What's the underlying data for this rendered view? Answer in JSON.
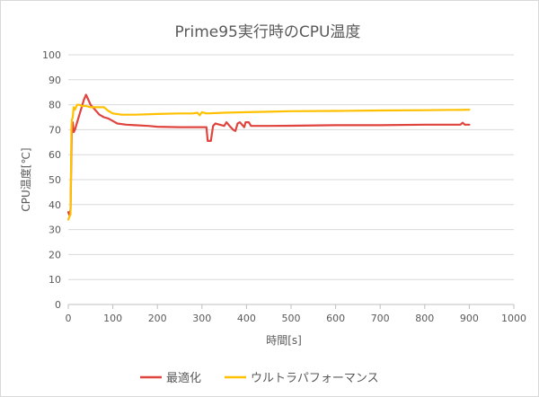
{
  "chart_data": {
    "type": "line",
    "title": "Prime95実行時のCPU温度",
    "xlabel": "時間[s]",
    "ylabel": "CPU温度[℃]",
    "xlim": [
      0,
      1000
    ],
    "ylim": [
      0,
      100
    ],
    "xticks": [
      "0",
      "100",
      "200",
      "300",
      "400",
      "500",
      "600",
      "700",
      "800",
      "900",
      "1000"
    ],
    "yticks": [
      "0",
      "10",
      "20",
      "30",
      "40",
      "50",
      "60",
      "70",
      "80",
      "90",
      "100"
    ],
    "grid": "horizontal",
    "legend_position": "bottom",
    "series": [
      {
        "name": "最適化",
        "color": "#e0443f",
        "points": [
          [
            0,
            37
          ],
          [
            2,
            36
          ],
          [
            5,
            38
          ],
          [
            8,
            72
          ],
          [
            10,
            73
          ],
          [
            12,
            69
          ],
          [
            15,
            70
          ],
          [
            20,
            73
          ],
          [
            25,
            76
          ],
          [
            30,
            79
          ],
          [
            35,
            82
          ],
          [
            40,
            84
          ],
          [
            45,
            82
          ],
          [
            50,
            80
          ],
          [
            60,
            78
          ],
          [
            70,
            76
          ],
          [
            80,
            75
          ],
          [
            90,
            74.5
          ],
          [
            100,
            73.5
          ],
          [
            110,
            72.5
          ],
          [
            130,
            72
          ],
          [
            150,
            71.8
          ],
          [
            180,
            71.5
          ],
          [
            200,
            71.2
          ],
          [
            250,
            71
          ],
          [
            300,
            71
          ],
          [
            310,
            71
          ],
          [
            313,
            65.5
          ],
          [
            320,
            65.5
          ],
          [
            325,
            71.5
          ],
          [
            330,
            72.5
          ],
          [
            340,
            72
          ],
          [
            350,
            71.5
          ],
          [
            355,
            73
          ],
          [
            362,
            71.5
          ],
          [
            370,
            70
          ],
          [
            375,
            69.5
          ],
          [
            380,
            72.5
          ],
          [
            385,
            73
          ],
          [
            390,
            72
          ],
          [
            395,
            71
          ],
          [
            398,
            73
          ],
          [
            405,
            73
          ],
          [
            410,
            71.5
          ],
          [
            450,
            71.5
          ],
          [
            500,
            71.6
          ],
          [
            600,
            71.8
          ],
          [
            700,
            71.8
          ],
          [
            800,
            72
          ],
          [
            880,
            72
          ],
          [
            885,
            72.8
          ],
          [
            890,
            72
          ],
          [
            900,
            72
          ]
        ]
      },
      {
        "name": "ウルトラパフォーマンス",
        "color": "#ffc000",
        "points": [
          [
            0,
            34
          ],
          [
            2,
            35
          ],
          [
            5,
            36
          ],
          [
            7,
            70
          ],
          [
            8,
            74
          ],
          [
            10,
            75
          ],
          [
            12,
            79
          ],
          [
            15,
            78
          ],
          [
            20,
            80
          ],
          [
            25,
            80
          ],
          [
            30,
            79.5
          ],
          [
            40,
            79.5
          ],
          [
            50,
            79
          ],
          [
            60,
            79
          ],
          [
            70,
            79
          ],
          [
            80,
            79
          ],
          [
            90,
            77.5
          ],
          [
            100,
            76.5
          ],
          [
            120,
            76
          ],
          [
            150,
            76
          ],
          [
            200,
            76.3
          ],
          [
            250,
            76.5
          ],
          [
            280,
            76.5
          ],
          [
            290,
            76.8
          ],
          [
            295,
            75.8
          ],
          [
            300,
            77
          ],
          [
            310,
            76.5
          ],
          [
            350,
            76.8
          ],
          [
            400,
            77
          ],
          [
            450,
            77.2
          ],
          [
            500,
            77.4
          ],
          [
            600,
            77.5
          ],
          [
            700,
            77.7
          ],
          [
            800,
            77.8
          ],
          [
            900,
            78
          ]
        ]
      }
    ]
  }
}
